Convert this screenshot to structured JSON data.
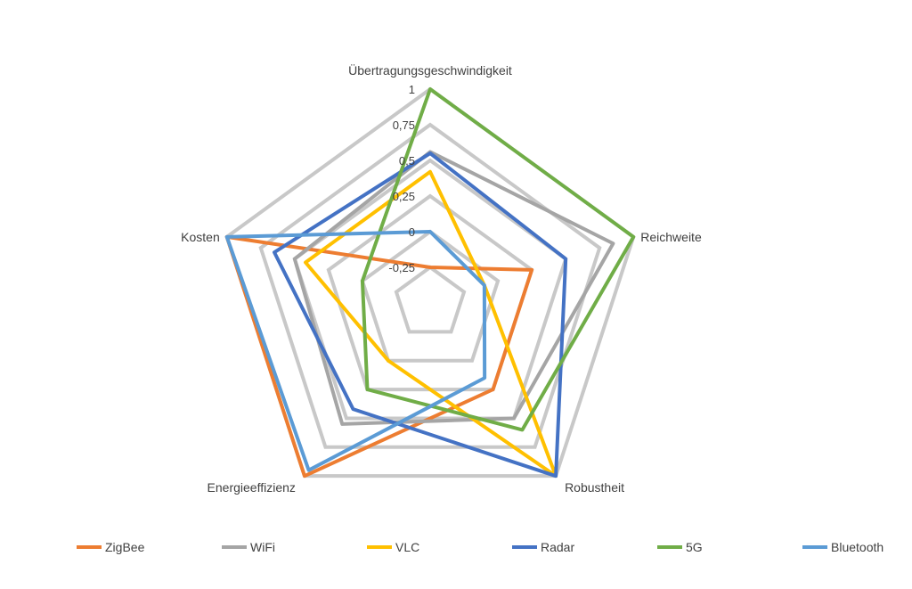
{
  "chart_data": {
    "type": "radar",
    "axes": [
      "Übertragungsgeschwindigkeit",
      "Reichweite",
      "Robustheit",
      "Energieeffizienz",
      "Kosten"
    ],
    "ticks": [
      -0.25,
      0,
      0.25,
      0.5,
      0.75,
      1
    ],
    "tick_labels": [
      "-0,25",
      "0",
      "0,25",
      "0,5",
      "0,75",
      "1"
    ],
    "range": [
      -0.5,
      1
    ],
    "grid": true,
    "legend_position": "bottom",
    "series": [
      {
        "name": "ZigBee",
        "color": "#ED7D31",
        "values": [
          -0.25,
          0.25,
          0.25,
          1,
          1
        ]
      },
      {
        "name": "WiFi",
        "color": "#A5A5A5",
        "values": [
          0.56,
          0.85,
          0.5,
          0.55,
          0.5
        ]
      },
      {
        "name": "VLC",
        "color": "#FFC000",
        "values": [
          0.42,
          -0.1,
          1,
          0.0,
          0.42
        ]
      },
      {
        "name": "Radar",
        "color": "#4472C4",
        "values": [
          0.55,
          0.5,
          1,
          0.42,
          0.65
        ]
      },
      {
        "name": "5G",
        "color": "#70AD47",
        "values": [
          1,
          1,
          0.6,
          0.25,
          0.0
        ]
      },
      {
        "name": "Bluetooth",
        "color": "#5B9BD5",
        "values": [
          0,
          -0.1,
          0.15,
          0.95,
          1
        ]
      }
    ]
  }
}
